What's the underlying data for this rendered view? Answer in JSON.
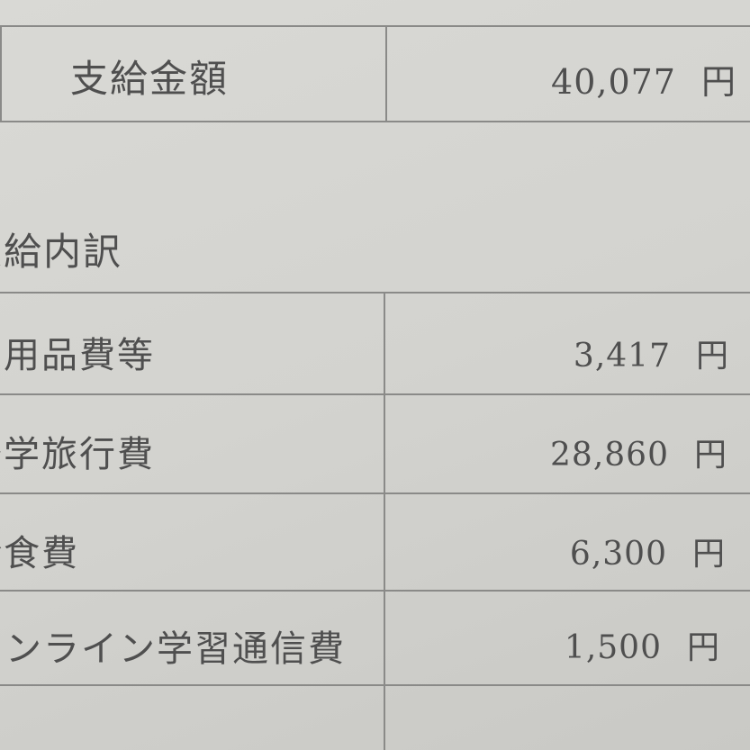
{
  "summary": {
    "label": "支給金額",
    "amount": "40,077",
    "unit": "円"
  },
  "breakdown_title": "支給内訳",
  "rows": [
    {
      "label": "学用品費等",
      "amount": "3,417",
      "unit": "円"
    },
    {
      "label": "修学旅行費",
      "amount": "28,860",
      "unit": "円"
    },
    {
      "label": "給食費",
      "amount": "6,300",
      "unit": "円"
    },
    {
      "label": "オンライン学習通信費",
      "amount": "1,500",
      "unit": "円"
    }
  ]
}
